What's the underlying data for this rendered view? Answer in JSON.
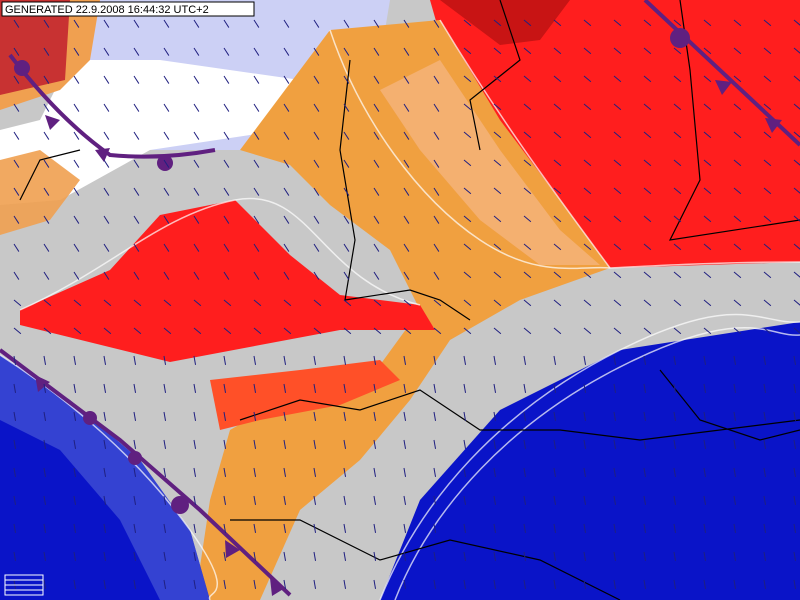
{
  "header": {
    "generated": "GENERATED 22.9.2008 16:44:32 UTC+2"
  }
}
